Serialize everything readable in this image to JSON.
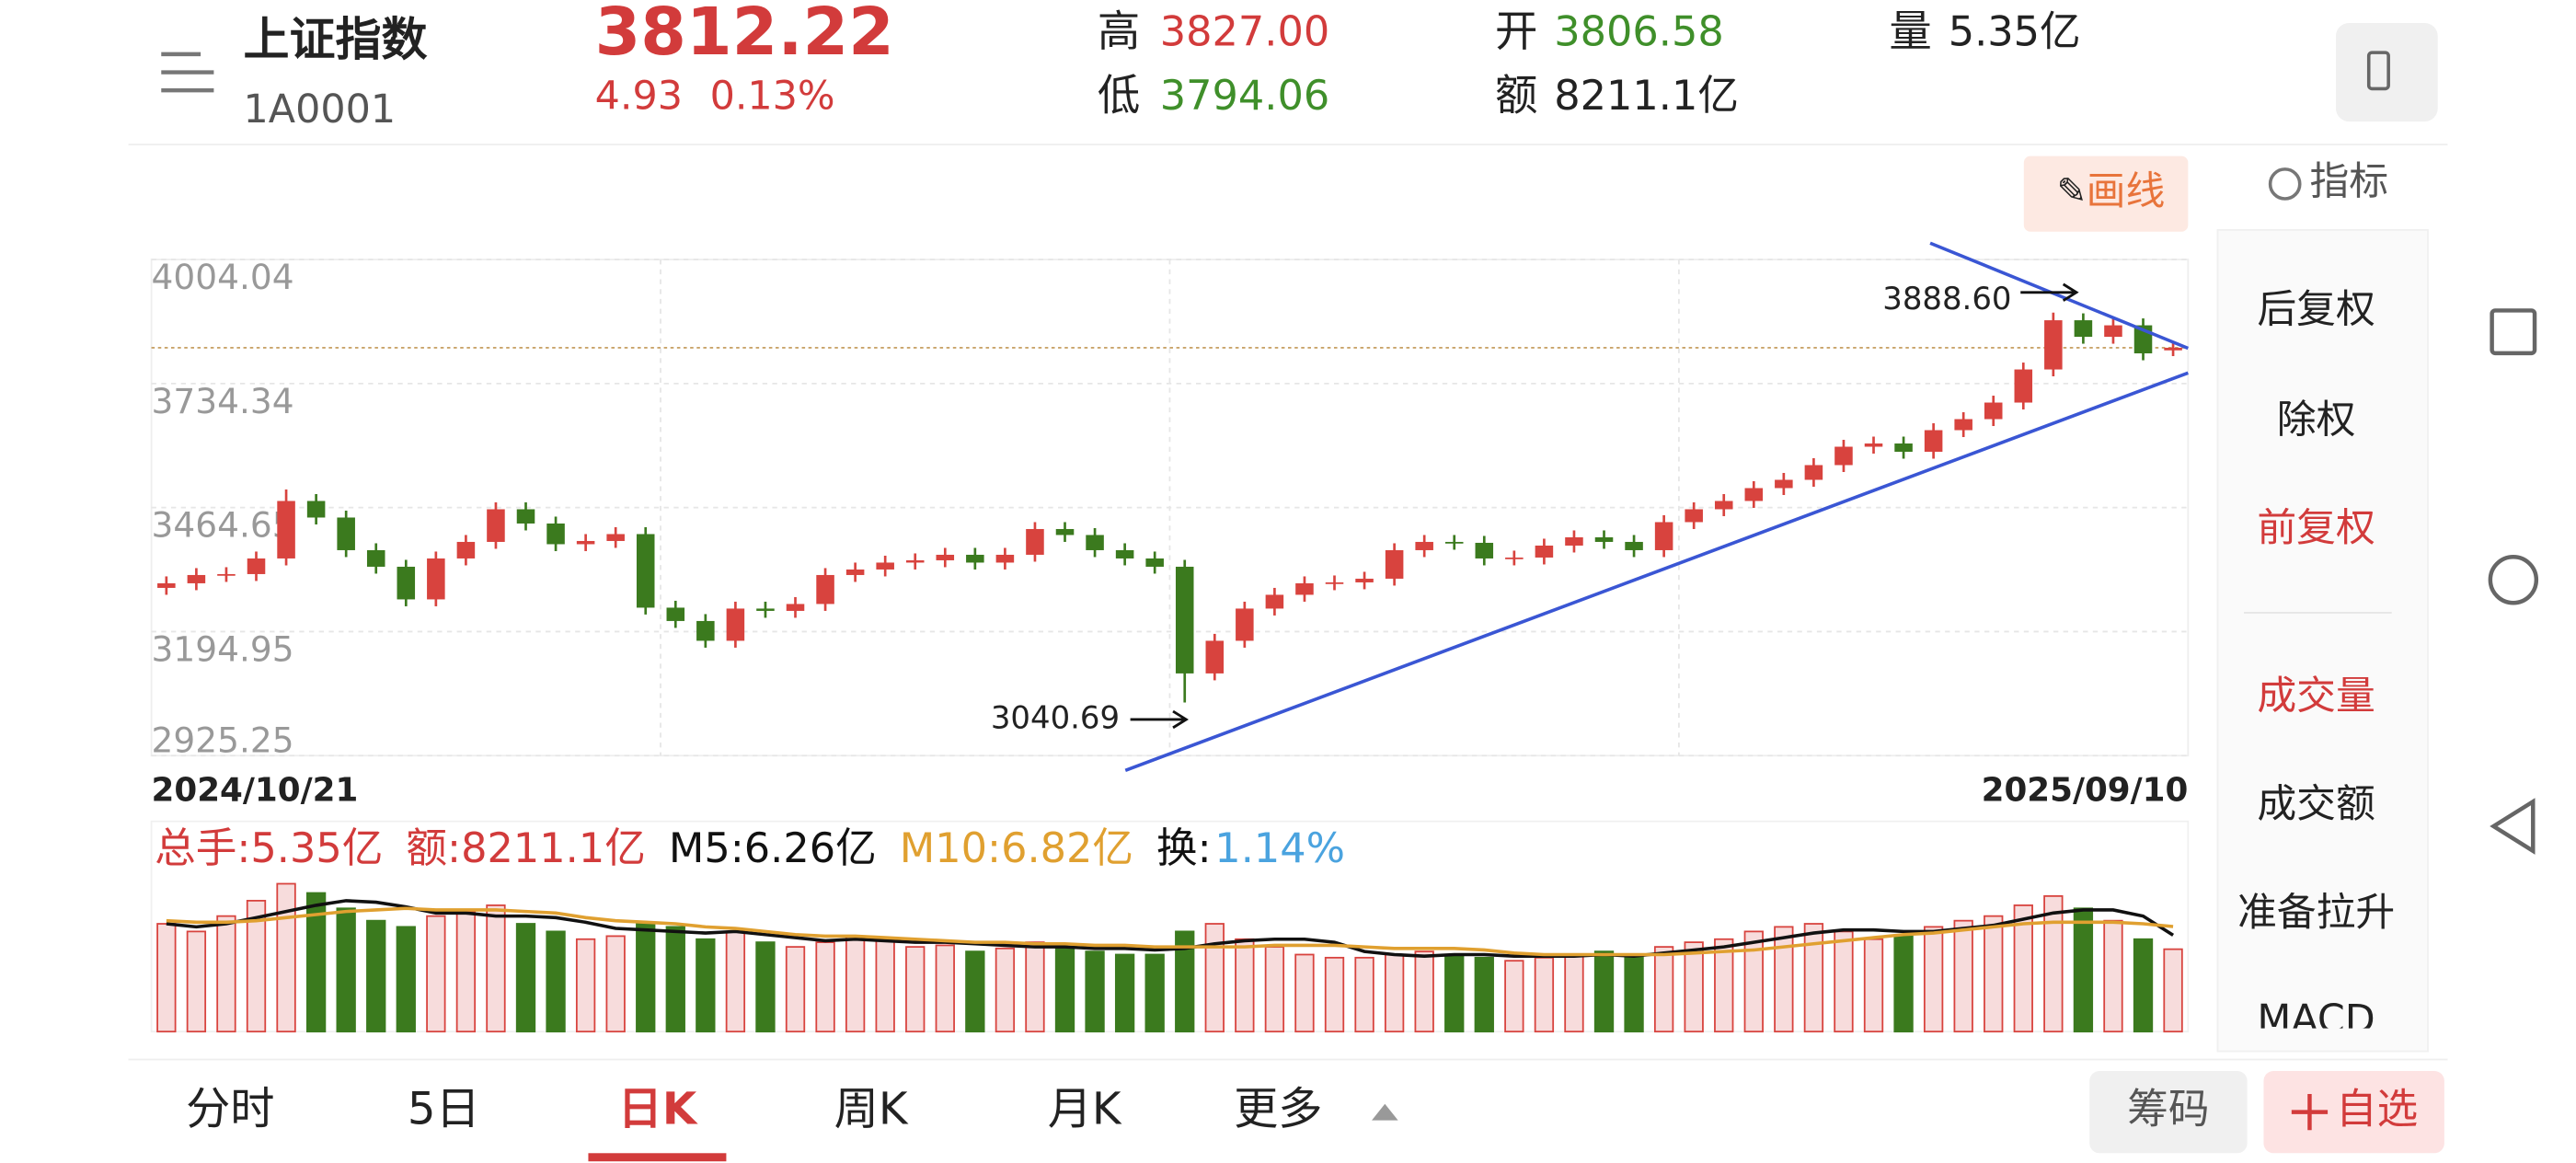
{
  "header": {
    "name": "上证指数",
    "code": "1A0001",
    "price": 3812.22,
    "change": 4.93,
    "change_pct": "0.13%",
    "high_label": "高",
    "high": "3827.00",
    "low_label": "低",
    "low": "3794.06",
    "open_label": "开",
    "open": "3806.58",
    "amount_label": "额",
    "amount": "8211.1亿",
    "volume_label": "量",
    "volume": "5.35亿"
  },
  "toolbar": {
    "draw": "画线",
    "indicator": "指标"
  },
  "side_menu": [
    "后复权",
    "除权",
    "前复权",
    "成交量",
    "成交额",
    "准备拉升",
    "MACD"
  ],
  "tabs": [
    "分时",
    "5日",
    "日K",
    "周K",
    "月K",
    "更多"
  ],
  "buttons": {
    "chips": "筹码",
    "watchlist": "自选"
  },
  "annotations": {
    "max": "3888.60",
    "min": "3040.69"
  },
  "chart_data": [
    {
      "type": "candlestick",
      "categories": [
        "2024/10/21",
        null,
        null,
        null,
        null,
        null,
        null,
        null,
        null,
        null,
        null,
        null,
        null,
        null,
        null,
        null,
        null,
        null,
        null,
        null,
        null,
        null,
        null,
        null,
        null,
        null,
        null,
        null,
        null,
        null,
        null,
        null,
        null,
        null,
        null,
        null,
        null,
        null,
        null,
        null,
        null,
        null,
        null,
        null,
        null,
        null,
        null,
        null,
        null,
        null,
        null,
        null,
        null,
        null,
        null,
        null,
        null,
        null,
        null,
        null,
        null,
        null,
        null,
        null,
        null,
        null,
        null,
        "2025/09/10"
      ],
      "open": [
        3290,
        3300,
        3318,
        3320,
        3354,
        3479,
        3443,
        3372,
        3336,
        3265,
        3354,
        3390,
        3461,
        3430,
        3385,
        3392,
        3407,
        3247,
        3218,
        3175,
        3245,
        3240,
        3255,
        3318,
        3330,
        3345,
        3350,
        3362,
        3345,
        3362,
        3418,
        3405,
        3372,
        3354,
        3336,
        3104,
        3175,
        3245,
        3275,
        3300,
        3302,
        3310,
        3372,
        3390,
        3388,
        3354,
        3356,
        3382,
        3400,
        3390,
        3372,
        3433,
        3461,
        3479,
        3507,
        3525,
        3557,
        3597,
        3604,
        3586,
        3633,
        3657,
        3693,
        3765,
        3872,
        3836,
        3861,
        3806.58
      ],
      "high": [
        3315,
        3333,
        3335,
        3369,
        3504,
        3494,
        3458,
        3387,
        3351,
        3369,
        3405,
        3476,
        3476,
        3445,
        3407,
        3422,
        3422,
        3262,
        3233,
        3260,
        3260,
        3270,
        3333,
        3345,
        3360,
        3365,
        3377,
        3377,
        3377,
        3433,
        3433,
        3420,
        3387,
        3369,
        3351,
        3190,
        3260,
        3290,
        3315,
        3317,
        3325,
        3387,
        3405,
        3405,
        3403,
        3371,
        3397,
        3415,
        3415,
        3405,
        3448,
        3476,
        3494,
        3522,
        3540,
        3572,
        3612,
        3619,
        3619,
        3648,
        3672,
        3708,
        3780,
        3888.6,
        3887,
        3876,
        3876,
        3827
      ],
      "low": [
        3275,
        3285,
        3303,
        3305,
        3339,
        3428,
        3357,
        3321,
        3250,
        3250,
        3339,
        3375,
        3415,
        3370,
        3370,
        3377,
        3232,
        3203,
        3160,
        3160,
        3225,
        3225,
        3240,
        3303,
        3315,
        3330,
        3335,
        3330,
        3330,
        3347,
        3390,
        3357,
        3339,
        3321,
        3040.69,
        3089,
        3160,
        3230,
        3260,
        3285,
        3287,
        3295,
        3357,
        3373,
        3339,
        3339,
        3341,
        3367,
        3375,
        3357,
        3357,
        3418,
        3446,
        3464,
        3492,
        3510,
        3542,
        3582,
        3571,
        3571,
        3618,
        3642,
        3678,
        3750,
        3821,
        3821,
        3785,
        3794.06
      ],
      "close": [
        3300,
        3318,
        3320,
        3354,
        3479,
        3443,
        3372,
        3336,
        3265,
        3354,
        3390,
        3461,
        3430,
        3385,
        3392,
        3407,
        3247,
        3218,
        3175,
        3245,
        3240,
        3255,
        3318,
        3330,
        3345,
        3350,
        3362,
        3345,
        3362,
        3418,
        3405,
        3372,
        3354,
        3336,
        3104,
        3175,
        3245,
        3275,
        3300,
        3302,
        3310,
        3372,
        3390,
        3388,
        3354,
        3356,
        3382,
        3400,
        3390,
        3372,
        3433,
        3461,
        3479,
        3507,
        3525,
        3557,
        3597,
        3604,
        3586,
        3633,
        3657,
        3693,
        3765,
        3872,
        3836,
        3861,
        3800,
        3812.22
      ],
      "up_color": "#d8433e",
      "down_color": "#3b7a1e",
      "ylim": [
        2925.25,
        4004.04
      ],
      "yticks": [
        4004.04,
        3734.34,
        3464.65,
        3194.95,
        2925.25
      ],
      "grid": true
    },
    {
      "type": "bar",
      "legend": [
        {
          "text": "总手:5.35亿",
          "color": "#d23b3b"
        },
        {
          "text": "额:8211.1亿",
          "color": "#d23b3b"
        },
        {
          "text": "M5:6.26亿",
          "color": "#111111"
        },
        {
          "text": "M10:6.82亿",
          "color": "#e0a030"
        },
        {
          "text": "换:",
          "color": "#111111"
        },
        {
          "text": "1.14%",
          "color": "#4aa3df"
        }
      ],
      "values": [
        7.0,
        6.5,
        7.5,
        8.5,
        9.6,
        9.0,
        8.0,
        7.2,
        6.8,
        7.5,
        7.8,
        8.2,
        7.0,
        6.5,
        6.0,
        6.2,
        7.0,
        6.8,
        6.0,
        6.5,
        5.8,
        5.5,
        5.8,
        6.2,
        6.0,
        5.5,
        5.6,
        5.2,
        5.4,
        5.8,
        5.5,
        5.2,
        5.0,
        5.0,
        6.5,
        7.0,
        6.0,
        5.5,
        5.0,
        4.8,
        4.8,
        5.0,
        5.2,
        5.0,
        4.8,
        4.6,
        4.8,
        5.0,
        5.2,
        5.0,
        5.5,
        5.8,
        6.0,
        6.5,
        6.8,
        7.0,
        6.5,
        6.0,
        6.2,
        6.8,
        7.2,
        7.5,
        8.2,
        8.8,
        8.0,
        7.2,
        6.0,
        5.35
      ],
      "lines": [
        {
          "color": "#111111",
          "values": [
            7.0,
            6.8,
            7.0,
            7.4,
            7.8,
            8.2,
            8.5,
            8.4,
            8.1,
            7.7,
            7.7,
            7.5,
            7.5,
            7.4,
            7.1,
            6.7,
            6.6,
            6.5,
            6.4,
            6.5,
            6.3,
            6.1,
            5.9,
            6.0,
            5.9,
            5.8,
            5.8,
            5.7,
            5.6,
            5.5,
            5.5,
            5.4,
            5.4,
            5.3,
            5.4,
            5.7,
            5.9,
            6.0,
            6.0,
            5.8,
            5.2,
            5.0,
            4.9,
            5.0,
            5.0,
            4.9,
            4.9,
            4.9,
            5.0,
            4.9,
            5.1,
            5.3,
            5.5,
            5.8,
            6.1,
            6.4,
            6.6,
            6.6,
            6.5,
            6.5,
            6.7,
            6.9,
            7.3,
            7.7,
            7.9,
            7.9,
            7.5,
            6.26
          ]
        },
        {
          "color": "#e0a030",
          "values": [
            7.2,
            7.1,
            7.1,
            7.2,
            7.4,
            7.6,
            7.8,
            7.9,
            8.0,
            7.9,
            7.9,
            7.9,
            7.8,
            7.7,
            7.4,
            7.2,
            7.1,
            7.0,
            6.8,
            6.7,
            6.5,
            6.3,
            6.2,
            6.2,
            6.1,
            6.0,
            5.9,
            5.8,
            5.8,
            5.7,
            5.7,
            5.6,
            5.6,
            5.5,
            5.5,
            5.5,
            5.5,
            5.6,
            5.6,
            5.6,
            5.5,
            5.4,
            5.4,
            5.4,
            5.3,
            5.1,
            5.0,
            5.0,
            5.0,
            5.0,
            5.0,
            5.1,
            5.2,
            5.3,
            5.5,
            5.7,
            5.9,
            6.1,
            6.3,
            6.4,
            6.6,
            6.8,
            7.0,
            7.1,
            7.1,
            7.1,
            7.0,
            6.82
          ]
        }
      ]
    }
  ]
}
